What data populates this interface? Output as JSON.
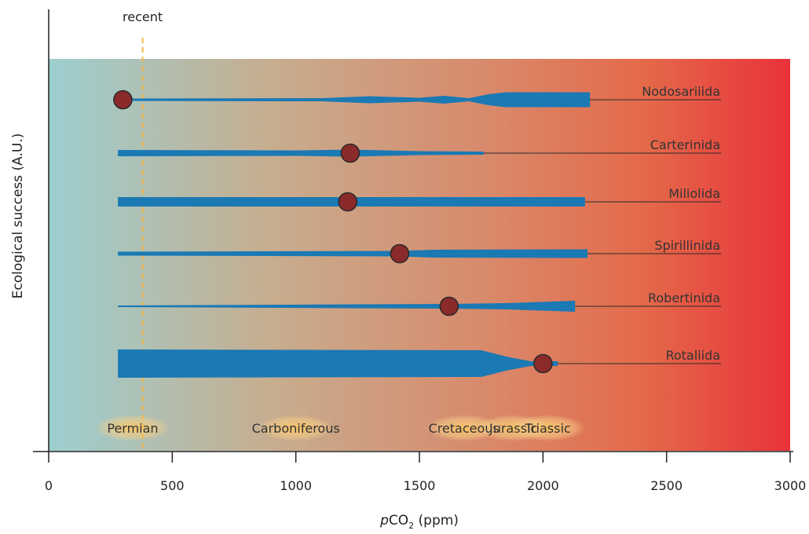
{
  "chart_data": {
    "type": "line",
    "xlabel_prefix": "p",
    "xlabel_main": "CO",
    "xlabel_sub": "2",
    "xlabel_suffix": " (ppm)",
    "ylabel": "Ecological success (A.U.)",
    "xlim": [
      0,
      3000
    ],
    "xticks": [
      0,
      500,
      1000,
      1500,
      2000,
      2500,
      3000
    ],
    "reference_line": {
      "label": "recent",
      "x": 380
    },
    "series": [
      {
        "name": "Nodosariiida",
        "start": 300,
        "end": 2190,
        "optimum": 300,
        "widths": [
          [
            300,
            3
          ],
          [
            1100,
            4
          ],
          [
            1300,
            9
          ],
          [
            1500,
            5
          ],
          [
            1600,
            10
          ],
          [
            1700,
            4
          ],
          [
            1780,
            14
          ],
          [
            1850,
            19
          ],
          [
            2190,
            19
          ]
        ]
      },
      {
        "name": "Carterinida",
        "start": 280,
        "end": 1760,
        "optimum": 1220,
        "widths": [
          [
            280,
            8
          ],
          [
            1000,
            7
          ],
          [
            1220,
            9
          ],
          [
            1500,
            5
          ],
          [
            1760,
            4
          ]
        ]
      },
      {
        "name": "Miliolida",
        "start": 280,
        "end": 2170,
        "optimum": 1210,
        "widths": [
          [
            280,
            12
          ],
          [
            2170,
            12
          ]
        ]
      },
      {
        "name": "Spirillinida",
        "start": 280,
        "end": 2180,
        "optimum": 1420,
        "widths": [
          [
            280,
            5
          ],
          [
            1420,
            7
          ],
          [
            1560,
            10
          ],
          [
            2180,
            11
          ]
        ]
      },
      {
        "name": "Robertinida",
        "start": 280,
        "end": 2130,
        "optimum": 1620,
        "widths": [
          [
            280,
            2
          ],
          [
            1620,
            6
          ],
          [
            1850,
            8
          ],
          [
            2130,
            14
          ]
        ]
      },
      {
        "name": "Rotaliida",
        "start": 280,
        "end": 2060,
        "optimum": 2000,
        "widths": [
          [
            280,
            36
          ],
          [
            1750,
            34
          ],
          [
            1850,
            18
          ],
          [
            1950,
            6
          ],
          [
            2060,
            6
          ]
        ]
      }
    ],
    "periods": [
      {
        "name": "Permian",
        "x": 340
      },
      {
        "name": "Carboniferous",
        "x": 1000
      },
      {
        "name": "Cretaceous",
        "x": 1680
      },
      {
        "name": "Jurassic",
        "x": 1880
      },
      {
        "name": "Triassic",
        "x": 2020
      }
    ],
    "colors": {
      "line": "#1b79b4",
      "optimum_marker": "#8b2a2a",
      "gradient_low": "#9ccfd0",
      "gradient_mid": "#d48c6c",
      "gradient_high": "#e8323a",
      "recent_line": "#f5b94a"
    }
  }
}
